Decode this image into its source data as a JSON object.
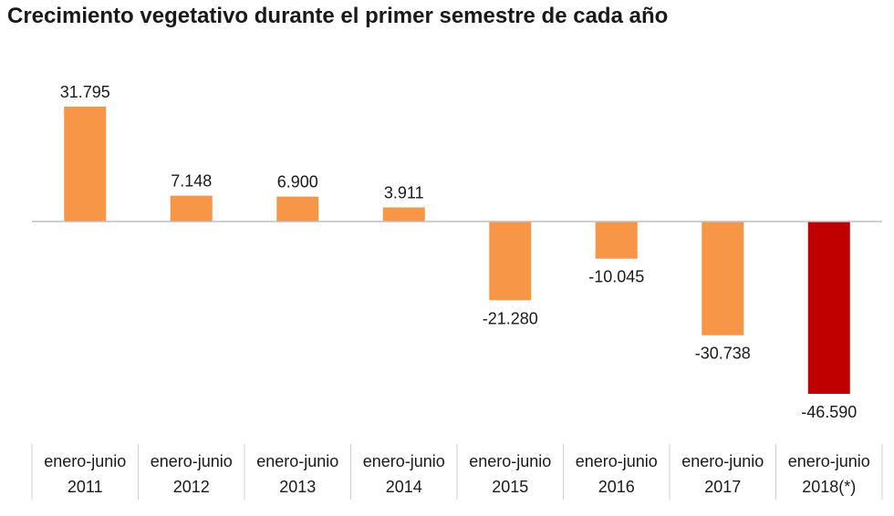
{
  "chart_data": {
    "type": "bar",
    "title": "Crecimiento vegetativo durante el primer semestre de cada año",
    "categories": [
      [
        "enero-junio",
        "2011"
      ],
      [
        "enero-junio",
        "2012"
      ],
      [
        "enero-junio",
        "2013"
      ],
      [
        "enero-junio",
        "2014"
      ],
      [
        "enero-junio",
        "2015"
      ],
      [
        "enero-junio",
        "2016"
      ],
      [
        "enero-junio",
        "2017"
      ],
      [
        "enero-junio",
        "2018(*)"
      ]
    ],
    "values": [
      31795,
      7148,
      6900,
      3911,
      -21280,
      -10045,
      -30738,
      -46590
    ],
    "value_labels": [
      "31.795",
      "7.148",
      "6.900",
      "3.911",
      "-21.280",
      "-10.045",
      "-30.738",
      "-46.590"
    ],
    "colors": [
      "#F79646",
      "#F79646",
      "#F79646",
      "#F79646",
      "#F79646",
      "#F79646",
      "#F79646",
      "#C00000"
    ],
    "ylim": [
      -46590,
      31795
    ],
    "grid": false,
    "legend": "none"
  }
}
